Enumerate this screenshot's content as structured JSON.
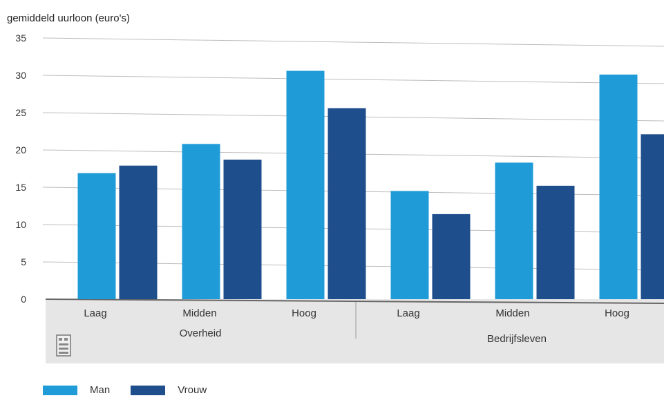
{
  "chart_data": {
    "type": "bar",
    "ylabel": "gemiddeld uurloon (euro's)",
    "ylim": [
      0,
      35
    ],
    "yticks": [
      0,
      5,
      10,
      15,
      20,
      25,
      30,
      35
    ],
    "grid": true,
    "groups": [
      {
        "name": "Overheid",
        "categories": [
          "Laag",
          "Midden",
          "Hoog"
        ]
      },
      {
        "name": "Bedrijfsleven",
        "categories": [
          "Laag",
          "Midden",
          "Hoog"
        ]
      }
    ],
    "categories": [
      "Laag",
      "Midden",
      "Hoog",
      "Laag",
      "Midden",
      "Hoog"
    ],
    "series": [
      {
        "name": "Man",
        "color": "#1f9bd7",
        "values": [
          16.9,
          20.8,
          30.6,
          14.5,
          18.3,
          30.1
        ]
      },
      {
        "name": "Vrouw",
        "color": "#1f4e8c",
        "values": [
          17.9,
          18.7,
          25.6,
          11.4,
          15.2,
          22.1
        ]
      }
    ],
    "legend_position": "bottom-left"
  },
  "colors": {
    "axis_band": "#e6e6e6",
    "grid": "#bdbdbd"
  },
  "icons": {
    "logo": "cbs-logo-icon"
  }
}
